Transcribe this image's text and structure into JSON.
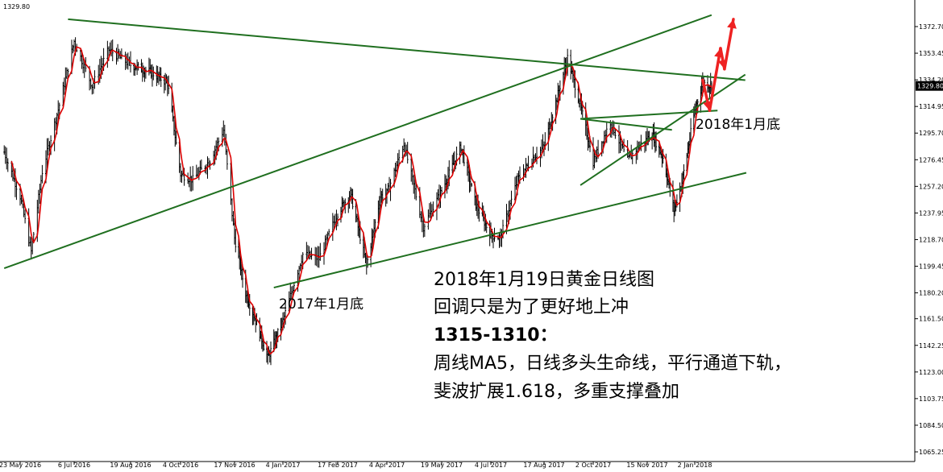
{
  "chart_data": {
    "type": "candlestick",
    "instrument_last_price": "1329.80",
    "corner_price_label": "1329.80",
    "y_ticks": [
      "1372.70",
      "1353.45",
      "1334.20",
      "1314.95",
      "1295.70",
      "1276.45",
      "1257.20",
      "1237.95",
      "1218.70",
      "1199.45",
      "1180.20",
      "1161.50",
      "1142.25",
      "1123.00",
      "1103.75",
      "1084.50",
      "1065.25"
    ],
    "ylim": [
      1065.25,
      1381
    ],
    "x_ticks": [
      {
        "date": "2016-05-23",
        "label": "23 May 2016"
      },
      {
        "date": "2016-07-06",
        "label": "6 Jul 2016"
      },
      {
        "date": "2016-08-19",
        "label": "19 Aug 2016"
      },
      {
        "date": "2016-10-04",
        "label": "4 Oct 2016"
      },
      {
        "date": "2016-11-17",
        "label": "17 Nov 2016"
      },
      {
        "date": "2017-01-04",
        "label": "4 Jan 2017"
      },
      {
        "date": "2017-02-17",
        "label": "17 Feb 2017"
      },
      {
        "date": "2017-04-04",
        "label": "4 Apr 2017"
      },
      {
        "date": "2017-05-19",
        "label": "19 May 2017"
      },
      {
        "date": "2017-07-04",
        "label": "4 Jul 2017"
      },
      {
        "date": "2017-08-17",
        "label": "17 Aug 2017"
      },
      {
        "date": "2017-10-02",
        "label": "2 Oct 2017"
      },
      {
        "date": "2017-11-15",
        "label": "15 Nov 2017"
      },
      {
        "date": "2018-01-02",
        "label": "2 Jan 2018"
      }
    ],
    "price_path": [
      [
        "2016-05-10",
        1282
      ],
      [
        "2016-05-23",
        1250
      ],
      [
        "2016-06-01",
        1210
      ],
      [
        "2016-06-10",
        1268
      ],
      [
        "2016-06-24",
        1316
      ],
      [
        "2016-07-06",
        1362
      ],
      [
        "2016-07-20",
        1330
      ],
      [
        "2016-08-02",
        1356
      ],
      [
        "2016-08-19",
        1345
      ],
      [
        "2016-09-06",
        1340
      ],
      [
        "2016-09-22",
        1332
      ],
      [
        "2016-10-04",
        1266
      ],
      [
        "2016-10-14",
        1262
      ],
      [
        "2016-10-28",
        1276
      ],
      [
        "2016-11-08",
        1298
      ],
      [
        "2016-11-17",
        1220
      ],
      [
        "2016-11-28",
        1180
      ],
      [
        "2016-12-08",
        1160
      ],
      [
        "2016-12-20",
        1133
      ],
      [
        "2017-01-04",
        1160
      ],
      [
        "2017-01-20",
        1208
      ],
      [
        "2017-02-02",
        1205
      ],
      [
        "2017-02-17",
        1238
      ],
      [
        "2017-03-01",
        1252
      ],
      [
        "2017-03-16",
        1200
      ],
      [
        "2017-03-29",
        1250
      ],
      [
        "2017-04-04",
        1252
      ],
      [
        "2017-04-18",
        1288
      ],
      [
        "2017-05-04",
        1228
      ],
      [
        "2017-05-19",
        1254
      ],
      [
        "2017-06-06",
        1286
      ],
      [
        "2017-06-20",
        1244
      ],
      [
        "2017-07-04",
        1222
      ],
      [
        "2017-07-12",
        1220
      ],
      [
        "2017-07-26",
        1262
      ],
      [
        "2017-08-08",
        1278
      ],
      [
        "2017-08-17",
        1286
      ],
      [
        "2017-09-08",
        1350
      ],
      [
        "2017-09-20",
        1316
      ],
      [
        "2017-10-02",
        1275
      ],
      [
        "2017-10-16",
        1304
      ],
      [
        "2017-10-30",
        1276
      ],
      [
        "2017-11-08",
        1286
      ],
      [
        "2017-11-20",
        1295
      ],
      [
        "2017-12-01",
        1278
      ],
      [
        "2017-12-12",
        1240
      ],
      [
        "2017-12-20",
        1260
      ],
      [
        "2018-01-02",
        1312
      ],
      [
        "2018-01-10",
        1332
      ],
      [
        "2018-01-19",
        1329.8
      ]
    ],
    "ma_period": 5,
    "trend_lines": [
      {
        "name": "descending-resistance",
        "from": [
          "2016-07-01",
          1378
        ],
        "to": [
          "2018-02-22",
          1334
        ]
      },
      {
        "name": "channel-upper",
        "from": [
          "2016-05-10",
          1198
        ],
        "to": [
          "2018-01-19",
          1381
        ]
      },
      {
        "name": "channel-lower",
        "from": [
          "2016-12-26",
          1184
        ],
        "to": [
          "2018-02-23",
          1267
        ]
      },
      {
        "name": "triangle-upper",
        "from": [
          "2017-09-20",
          1306
        ],
        "to": [
          "2018-01-25",
          1312
        ]
      },
      {
        "name": "triangle-lower",
        "from": [
          "2017-09-20",
          1306
        ],
        "to": [
          "2017-12-10",
          1298
        ]
      },
      {
        "name": "rising-support",
        "from": [
          "2017-09-20",
          1258
        ],
        "to": [
          "2018-02-22",
          1338
        ]
      }
    ],
    "projection_arrows": [
      [
        "2018-01-10",
        1334
      ],
      [
        "2018-01-17",
        1312
      ],
      [
        "2018-01-28",
        1357
      ],
      [
        "2018-02-01",
        1342
      ],
      [
        "2018-02-10",
        1378
      ]
    ],
    "annotations": {
      "low_2017": "2017年1月底",
      "low_2018": "2018年1月底",
      "text_lines": [
        "2018年1月19日黄金日线图",
        "回调只是为了更好地上冲",
        "1315-1310：",
        "周线MA5，日线多头生命线，平行通道下轨，",
        "斐波扩展1.618，多重支撑叠加"
      ]
    },
    "colors": {
      "candle": "#000000",
      "ma": "#dd0000",
      "trend": "#1f6f1f",
      "arrow": "#ee2222",
      "price_marker_bg": "#000000",
      "price_marker_fg": "#ffffff"
    }
  }
}
